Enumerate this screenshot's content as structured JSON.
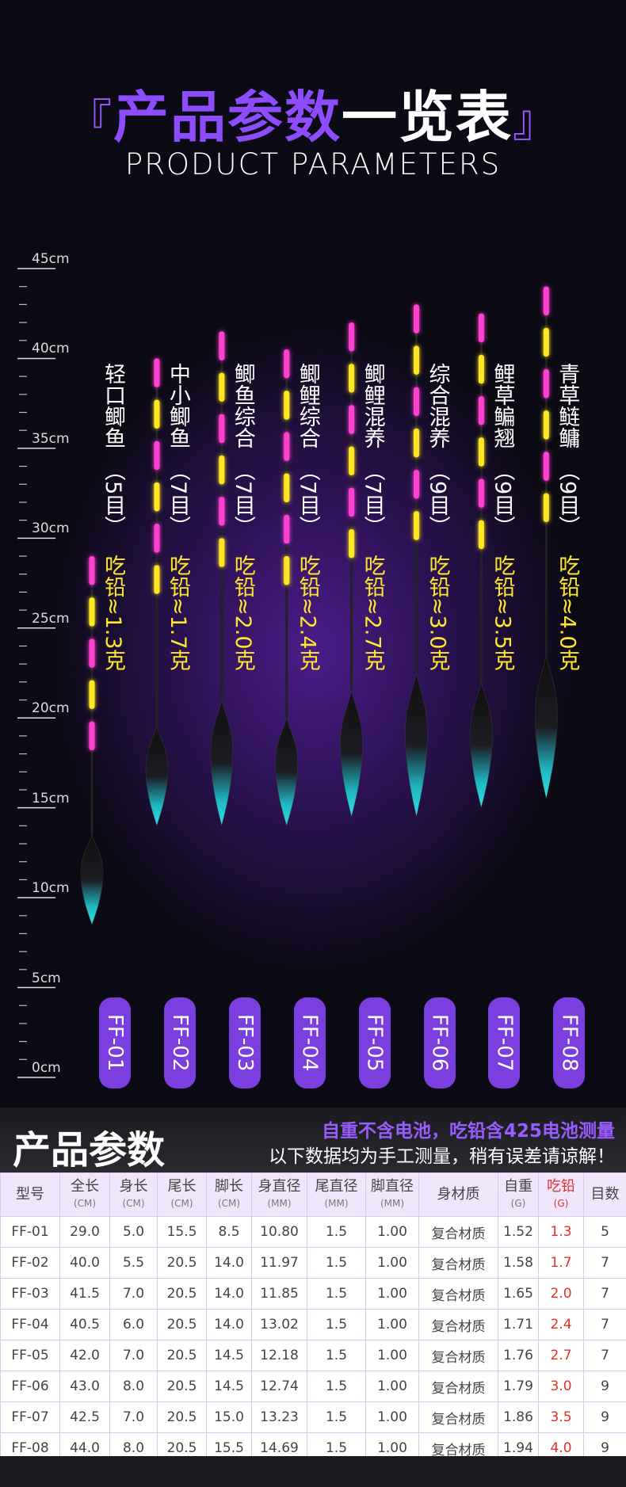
{
  "header": {
    "bracket_open": "『",
    "title_purple": "产品参数",
    "title_white": "一览表",
    "bracket_close": "』",
    "subtitle": "PRODUCT PARAMETERS"
  },
  "ruler": [
    {
      "value": 0,
      "label": "0cm"
    },
    {
      "value": 5,
      "label": "5cm"
    },
    {
      "value": 10,
      "label": "10cm"
    },
    {
      "value": 15,
      "label": "15cm"
    },
    {
      "value": 20,
      "label": "20cm"
    },
    {
      "value": 25,
      "label": "25cm"
    },
    {
      "value": 30,
      "label": "30cm"
    },
    {
      "value": 35,
      "label": "35cm"
    },
    {
      "value": 40,
      "label": "40cm"
    },
    {
      "value": 45,
      "label": "45cm"
    }
  ],
  "floats": [
    {
      "name": "轻口鲫鱼",
      "mesh": "（5目）",
      "lead": "吃铅≈1.3克",
      "model": "FF-01"
    },
    {
      "name": "中小鲫鱼",
      "mesh": "（7目）",
      "lead": "吃铅≈1.7克",
      "model": "FF-02"
    },
    {
      "name": "鲫鱼综合",
      "mesh": "（7目）",
      "lead": "吃铅≈2.0克",
      "model": "FF-03"
    },
    {
      "name": "鲫鲤综合",
      "mesh": "（7目）",
      "lead": "吃铅≈2.4克",
      "model": "FF-04"
    },
    {
      "name": "鲫鲤混养",
      "mesh": "（7目）",
      "lead": "吃铅≈2.7克",
      "model": "FF-05"
    },
    {
      "name": "综合混养",
      "mesh": "（9目）",
      "lead": "吃铅≈3.0克",
      "model": "FF-06"
    },
    {
      "name": "鲤草鳊翘",
      "mesh": "（9目）",
      "lead": "吃铅≈3.5克",
      "model": "FF-07"
    },
    {
      "name": "青草鲢鳙",
      "mesh": "（9目）",
      "lead": "吃铅≈4.0克",
      "model": "FF-08"
    }
  ],
  "section": {
    "title": "产品参数",
    "note1": "自重不含电池，吃铅含425电池测量",
    "note2": "以下数据均为手工测量，稍有误差请谅解！"
  },
  "table": {
    "headers": [
      {
        "name": "型号"
      },
      {
        "name": "全长",
        "unit": "(CM)"
      },
      {
        "name": "身长",
        "unit": "(CM)"
      },
      {
        "name": "尾长",
        "unit": "(CM)"
      },
      {
        "name": "脚长",
        "unit": "(CM)"
      },
      {
        "name": "身直径",
        "unit": "(MM)"
      },
      {
        "name": "尾直径",
        "unit": "(MM)"
      },
      {
        "name": "脚直径",
        "unit": "(MM)"
      },
      {
        "name": "身材质"
      },
      {
        "name": "自重",
        "unit": "(G)"
      },
      {
        "name": "吃铅",
        "unit": "(G)"
      },
      {
        "name": "目数"
      }
    ],
    "rows": [
      [
        "FF-01",
        "29.0",
        "5.0",
        "15.5",
        "8.5",
        "10.80",
        "1.5",
        "1.00",
        "复合材质",
        "1.52",
        "1.3",
        "5"
      ],
      [
        "FF-02",
        "40.0",
        "5.5",
        "20.5",
        "14.0",
        "11.97",
        "1.5",
        "1.00",
        "复合材质",
        "1.58",
        "1.7",
        "7"
      ],
      [
        "FF-03",
        "41.5",
        "7.0",
        "20.5",
        "14.0",
        "11.85",
        "1.5",
        "1.00",
        "复合材质",
        "1.65",
        "2.0",
        "7"
      ],
      [
        "FF-04",
        "40.5",
        "6.0",
        "20.5",
        "14.0",
        "13.02",
        "1.5",
        "1.00",
        "复合材质",
        "1.71",
        "2.4",
        "7"
      ],
      [
        "FF-05",
        "42.0",
        "7.0",
        "20.5",
        "14.5",
        "12.18",
        "1.5",
        "1.00",
        "复合材质",
        "1.76",
        "2.7",
        "7"
      ],
      [
        "FF-06",
        "43.0",
        "8.0",
        "20.5",
        "14.5",
        "12.74",
        "1.5",
        "1.00",
        "复合材质",
        "1.79",
        "3.0",
        "9"
      ],
      [
        "FF-07",
        "42.5",
        "7.0",
        "20.5",
        "15.0",
        "13.23",
        "1.5",
        "1.00",
        "复合材质",
        "1.86",
        "3.5",
        "9"
      ],
      [
        "FF-08",
        "44.0",
        "8.0",
        "20.5",
        "15.5",
        "14.69",
        "1.5",
        "1.00",
        "复合材质",
        "1.94",
        "4.0",
        "9"
      ]
    ]
  }
}
